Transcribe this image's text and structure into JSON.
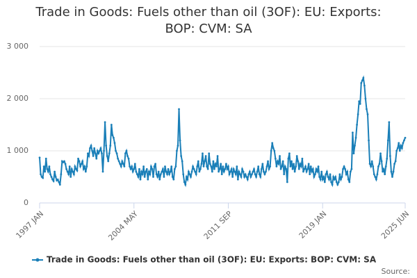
{
  "chart_data": {
    "type": "line",
    "title": "Trade in Goods: Fuels other than oil (3OF): EU: Exports: BOP: CVM: SA",
    "source": "Source:",
    "categories": [
      "1997 JAN",
      null,
      null,
      null,
      null,
      null,
      null,
      null,
      null,
      null,
      null,
      null,
      null,
      null,
      null,
      null,
      null,
      null,
      null,
      null,
      null,
      null,
      null,
      null,
      null,
      null,
      null,
      null,
      null,
      null,
      null,
      null,
      null,
      null,
      null,
      null,
      null,
      null,
      null,
      null,
      null,
      null,
      null,
      null,
      null,
      null,
      null,
      null,
      null,
      null,
      null,
      null,
      null,
      null,
      null,
      null,
      null,
      null,
      null,
      null,
      null,
      null,
      null,
      null,
      null,
      null,
      null,
      null,
      null,
      null,
      null,
      null,
      null,
      null,
      null,
      null,
      null,
      null,
      null,
      null,
      null,
      null,
      null,
      null,
      null,
      null,
      null,
      null,
      "2004 MAY",
      null,
      null,
      null,
      null,
      null,
      null,
      null,
      null,
      null,
      null,
      null,
      null,
      null,
      null,
      null,
      null,
      null,
      null,
      null,
      null,
      null,
      null,
      null,
      null,
      null,
      null,
      null,
      null,
      null,
      null,
      null,
      null,
      null,
      null,
      null,
      null,
      null,
      null,
      null,
      null,
      null,
      null,
      null,
      null,
      null,
      null,
      null,
      null,
      null,
      null,
      null,
      null,
      null,
      null,
      null,
      null,
      null,
      null,
      null,
      null,
      null,
      null,
      null,
      null,
      null,
      null,
      null,
      null,
      null,
      null,
      null,
      null,
      null,
      null,
      null,
      null,
      null,
      null,
      null,
      null,
      null,
      null,
      null,
      null,
      null,
      null,
      null,
      "2011 SEP",
      null,
      null,
      null,
      null,
      null,
      null,
      null,
      null,
      null,
      null,
      null,
      null,
      null,
      null,
      null,
      null,
      null,
      null,
      null,
      null,
      null,
      null,
      null,
      null,
      null,
      null,
      null,
      null,
      null,
      null,
      null,
      null,
      null,
      null,
      null,
      null,
      null,
      null,
      null,
      null,
      null,
      null,
      null,
      null,
      null,
      null,
      null,
      null,
      null,
      null,
      null,
      null,
      null,
      null,
      null,
      null,
      null,
      null,
      null,
      null,
      null,
      null,
      null,
      null,
      null,
      null,
      null,
      null,
      null,
      null,
      null,
      null,
      null,
      null,
      null,
      null,
      null,
      null,
      null,
      null,
      null,
      null,
      null,
      null,
      null,
      null,
      null,
      "2019 JAN",
      null,
      null,
      null,
      null,
      null,
      null,
      null,
      null,
      null,
      null,
      null,
      null,
      null,
      null,
      null,
      null,
      null,
      null,
      null,
      null,
      null,
      null,
      null,
      null,
      null,
      null,
      null,
      null,
      null,
      null,
      null,
      null,
      null,
      null,
      null,
      null,
      null,
      null,
      null,
      null,
      null,
      null,
      null,
      null,
      null,
      null,
      null,
      null,
      null,
      null,
      null,
      null,
      null,
      null,
      null,
      null,
      null,
      null,
      null,
      null,
      null,
      null,
      null,
      null,
      null,
      null,
      null,
      null,
      null,
      null,
      null,
      null,
      null,
      null,
      null,
      null,
      "2025 JUN"
    ],
    "series": [
      {
        "name": "Trade in Goods: Fuels other than oil (3OF): EU: Exports: BOP: CVM: SA",
        "color": "#1a7fb8",
        "values": [
          870,
          550,
          500,
          480,
          700,
          600,
          850,
          650,
          600,
          700,
          550,
          500,
          450,
          420,
          600,
          500,
          430,
          450,
          400,
          350,
          550,
          800,
          780,
          800,
          750,
          650,
          600,
          550,
          700,
          500,
          650,
          600,
          550,
          700,
          650,
          620,
          850,
          800,
          700,
          750,
          800,
          650,
          700,
          600,
          700,
          950,
          900,
          1050,
          1100,
          1000,
          900,
          1050,
          950,
          850,
          1000,
          950,
          1000,
          1050,
          950,
          600,
          1000,
          1550,
          1100,
          900,
          800,
          950,
          1100,
          1500,
          1300,
          1250,
          1150,
          1000,
          950,
          850,
          800,
          750,
          700,
          800,
          750,
          700,
          950,
          1000,
          900,
          850,
          700,
          650,
          700,
          600,
          650,
          750,
          600,
          550,
          500,
          650,
          450,
          600,
          550,
          700,
          500,
          600,
          650,
          450,
          600,
          550,
          700,
          650,
          500,
          700,
          750,
          550,
          500,
          600,
          450,
          550,
          600,
          650,
          500,
          700,
          600,
          550,
          650,
          550,
          600,
          700,
          500,
          450,
          650,
          700,
          1000,
          1100,
          1800,
          1200,
          900,
          800,
          550,
          400,
          350,
          500,
          450,
          600,
          550,
          500,
          600,
          700,
          650,
          600,
          550,
          700,
          800,
          600,
          650,
          750,
          950,
          700,
          800,
          900,
          700,
          650,
          950,
          750,
          700,
          600,
          800,
          650,
          750,
          700,
          900,
          600,
          650,
          750,
          550,
          700,
          600,
          650,
          750,
          650,
          700,
          550,
          600,
          650,
          500,
          650,
          600,
          550,
          700,
          450,
          600,
          550,
          500,
          650,
          600,
          500,
          550,
          500,
          450,
          550,
          600,
          500,
          550,
          600,
          650,
          550,
          500,
          600,
          700,
          550,
          500,
          650,
          750,
          600,
          550,
          600,
          700,
          800,
          650,
          700,
          1000,
          1150,
          1050,
          1000,
          850,
          700,
          800,
          750,
          900,
          650,
          700,
          800,
          550,
          700,
          650,
          400,
          850,
          950,
          700,
          800,
          650,
          750,
          600,
          700,
          900,
          800,
          650,
          750,
          700,
          850,
          600,
          650,
          700,
          600,
          650,
          750,
          550,
          700,
          600,
          650,
          500,
          550,
          650,
          600,
          700,
          500,
          450,
          600,
          450,
          500,
          400,
          550,
          600,
          500,
          450,
          550,
          400,
          350,
          500,
          450,
          500,
          400,
          350,
          400,
          550,
          450,
          500,
          650,
          700,
          650,
          550,
          600,
          450,
          400,
          600,
          650,
          1350,
          950,
          1100,
          1250,
          1500,
          1700,
          1950,
          1900,
          2300,
          2350,
          2400,
          2250,
          2000,
          1800,
          1700,
          1200,
          750,
          700,
          800,
          700,
          550,
          500,
          450,
          550,
          700,
          750,
          950,
          800,
          600,
          650,
          550,
          700,
          850,
          1200,
          1550,
          900,
          600,
          500,
          600,
          750,
          800,
          1000,
          1050,
          1150,
          1000,
          1100,
          1050,
          1150,
          1200,
          1250
        ]
      }
    ],
    "ylim": [
      0,
      3000
    ],
    "yticks": [
      0,
      {
        "value": 1000,
        "label": "1 000"
      },
      {
        "value": 2000,
        "label": "2 000"
      },
      {
        "value": 3000,
        "label": "3 000"
      }
    ],
    "grid": true
  }
}
